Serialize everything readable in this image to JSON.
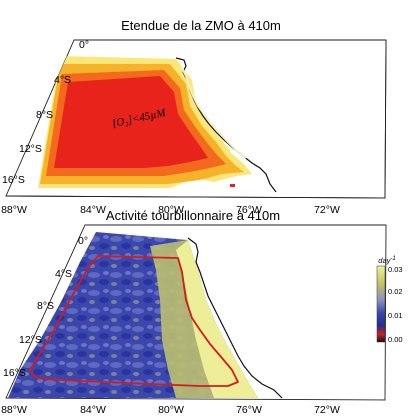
{
  "top_panel": {
    "title": "Etendue de la ZMO à 410m",
    "annotation": "[O₂]<45µM",
    "lat_labels": [
      "0°",
      "4°S",
      "8°S",
      "12°S",
      "16°S"
    ],
    "colors": {
      "core": "#e8231b",
      "mid": "#f36a1e",
      "outer": "#f6b329",
      "edge": "#fbe679",
      "coast": "#111111"
    }
  },
  "bottom_panel": {
    "title": "Activité tourbillonnaire à 410m",
    "lat_labels": [
      "0°",
      "4°S",
      "8°S",
      "12°S",
      "16°S"
    ],
    "contour_color": "#d21c1c"
  },
  "lon_labels": [
    "88°W",
    "84°W",
    "80°W",
    "76°W",
    "72°W"
  ],
  "colorbar": {
    "unit": "day",
    "unit_exp": "-1",
    "ticks": [
      "0.03",
      "0.02",
      "0.01",
      "0.00"
    ],
    "colors": [
      "#eeee99",
      "#c2c25d",
      "#6f77c9",
      "#23309b",
      "#c62124",
      "#111111"
    ]
  }
}
